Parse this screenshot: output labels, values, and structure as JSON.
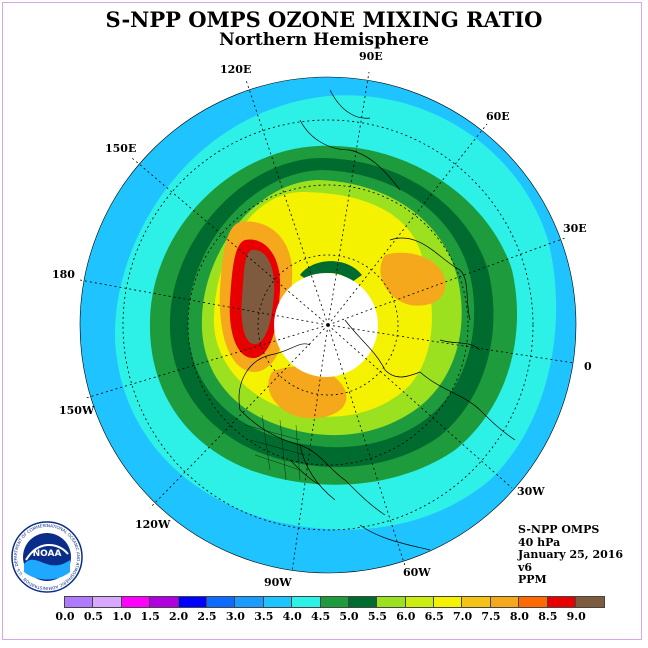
{
  "header": {
    "title": "S-NPP OMPS OZONE MIXING RATIO",
    "subtitle": "Northern Hemisphere"
  },
  "map": {
    "longitude_labels": [
      "90E",
      "60E",
      "30E",
      "0",
      "30W",
      "60W",
      "90W",
      "120W",
      "150W",
      "180",
      "150E",
      "120E"
    ],
    "colors": {
      "ocean_outer": "#1fc3ff",
      "light_cyan": "#2df0e6",
      "green_light": "#1e9b3c",
      "green_dark": "#006b2e",
      "yellow_green": "#9be11f",
      "yellow": "#f4f200",
      "orange": "#f5a81c",
      "red": "#e80000",
      "brown": "#7e5a3f",
      "missing": "#ffffff"
    }
  },
  "info": {
    "instrument": "S-NPP OMPS",
    "level": "40 hPa",
    "date": "January 25, 2016",
    "version": "v6",
    "units": "PPM"
  },
  "colorbar": {
    "ticks": [
      "0.0",
      "0.5",
      "1.0",
      "1.5",
      "2.0",
      "2.5",
      "3.0",
      "3.5",
      "4.0",
      "4.5",
      "5.0",
      "5.5",
      "6.0",
      "6.5",
      "7.0",
      "7.5",
      "8.0",
      "8.5",
      "9.0"
    ],
    "colors": [
      "#b07aff",
      "#d8a8ff",
      "#ff00ff",
      "#b000e0",
      "#0000ff",
      "#0d6bff",
      "#1a9cff",
      "#1fc3ff",
      "#2df0e6",
      "#1e9b3c",
      "#006b2e",
      "#9be11f",
      "#cbee10",
      "#f4f200",
      "#f5c218",
      "#f5a81c",
      "#ff6a00",
      "#e80000",
      "#7e5a3f"
    ]
  },
  "logo": {
    "label": "NOAA",
    "ring_text": "NATIONAL OCEANIC AND ATMOSPHERIC ADMINISTRATION · U.S. DEPARTMENT OF COMMERCE"
  }
}
